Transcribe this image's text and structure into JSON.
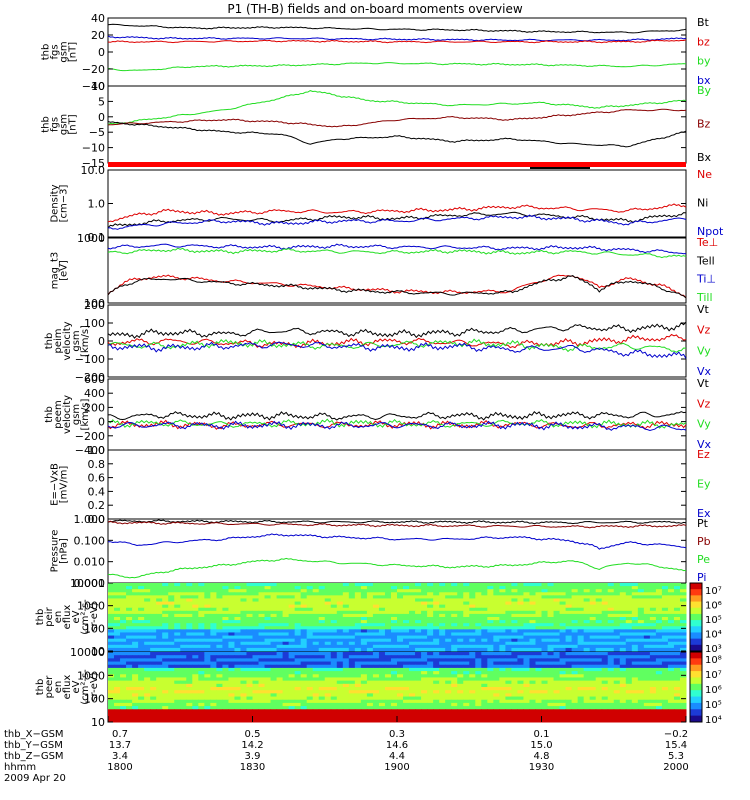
{
  "title": "P1 (TH-B) fields and on-board moments overview",
  "colors": {
    "black": "#000000",
    "red": "#dd0000",
    "green": "#22dd22",
    "blue": "#0000cc",
    "darkred": "#880000"
  },
  "chart_data": [
    {
      "type": "line",
      "panel": "fgs-magnitude",
      "ylabel_lines": [
        "thb",
        "fgs",
        "gsm",
        "[nT]"
      ],
      "ylim": [
        -40,
        40
      ],
      "yticks": [
        "40",
        "20",
        "0",
        "−20",
        "−40"
      ],
      "legend": [
        "Bt",
        "bz",
        "by",
        "bx"
      ],
      "series": [
        {
          "name": "Bt",
          "color": "black",
          "x": [
            0,
            0.05,
            0.15,
            0.3,
            0.45,
            0.6,
            0.75,
            0.9,
            1.0
          ],
          "values": [
            32,
            31,
            28,
            29,
            27,
            26,
            24,
            23,
            26
          ]
        },
        {
          "name": "bx",
          "color": "blue",
          "x": [
            0,
            0.1,
            0.3,
            0.5,
            0.7,
            0.9,
            1.0
          ],
          "values": [
            18,
            16,
            16,
            15,
            14,
            14,
            16
          ]
        },
        {
          "name": "bz",
          "color": "red",
          "x": [
            0,
            0.1,
            0.3,
            0.5,
            0.7,
            0.9,
            1.0
          ],
          "values": [
            12,
            12,
            13,
            12,
            12,
            12,
            14
          ]
        },
        {
          "name": "by",
          "color": "green",
          "x": [
            0,
            0.05,
            0.15,
            0.3,
            0.45,
            0.6,
            0.75,
            0.9,
            1.0
          ],
          "values": [
            -20,
            -22,
            -17,
            -16,
            -13,
            -14,
            -15,
            -17,
            -14
          ]
        }
      ]
    },
    {
      "type": "line",
      "panel": "fgs-components",
      "ylabel_lines": [
        "thb",
        "fgs",
        "gsm",
        "[nT]"
      ],
      "ylim": [
        -20,
        12
      ],
      "yticks": [
        "10",
        "5",
        "0",
        "−5",
        "−10",
        "−15"
      ],
      "legend": [
        "By",
        "Bz",
        "Bx"
      ],
      "series": [
        {
          "name": "By",
          "color": "green",
          "x": [
            0,
            0.1,
            0.2,
            0.3,
            0.35,
            0.45,
            0.6,
            0.75,
            0.85,
            0.95,
            1.0
          ],
          "values": [
            -4,
            -1,
            2,
            7,
            10,
            6,
            4,
            5,
            3,
            5,
            6
          ]
        },
        {
          "name": "Bz",
          "color": "darkred",
          "x": [
            0,
            0.1,
            0.2,
            0.3,
            0.4,
            0.5,
            0.6,
            0.7,
            0.8,
            0.9,
            1.0
          ],
          "values": [
            -4,
            -3,
            -2,
            -3,
            -5,
            -2,
            -1,
            -2,
            0,
            2,
            2
          ]
        },
        {
          "name": "Bx",
          "color": "black",
          "x": [
            0,
            0.1,
            0.2,
            0.3,
            0.35,
            0.4,
            0.5,
            0.6,
            0.7,
            0.8,
            0.9,
            1.0
          ],
          "values": [
            -3,
            -5,
            -7,
            -8,
            -12,
            -10,
            -9,
            -11,
            -10,
            -12,
            -13,
            -7
          ]
        }
      ]
    },
    {
      "type": "line",
      "panel": "density",
      "ylabel_lines": [
        "Density",
        "[cm−3]"
      ],
      "scale": "log",
      "ylim": [
        0.1,
        10
      ],
      "yticks": [
        "10.0",
        "1.0",
        "0.1"
      ],
      "legend": [
        "Ne",
        "Ni",
        "Npot"
      ],
      "series": [
        {
          "name": "Ne",
          "color": "red",
          "x": [
            0,
            0.1,
            0.2,
            0.3,
            0.4,
            0.5,
            0.6,
            0.7,
            0.8,
            0.9,
            1.0
          ],
          "values": [
            0.3,
            0.6,
            0.5,
            0.6,
            0.55,
            0.6,
            0.65,
            0.8,
            0.7,
            0.6,
            0.9
          ]
        },
        {
          "name": "Ni",
          "color": "black",
          "x": [
            0,
            0.1,
            0.2,
            0.3,
            0.4,
            0.5,
            0.6,
            0.7,
            0.8,
            0.9,
            1.0
          ],
          "values": [
            0.2,
            0.3,
            0.35,
            0.3,
            0.4,
            0.35,
            0.45,
            0.5,
            0.4,
            0.3,
            0.5
          ]
        },
        {
          "name": "Npot",
          "color": "blue",
          "x": [
            0,
            0.1,
            0.2,
            0.3,
            0.4,
            0.5,
            0.6,
            0.7,
            0.8,
            0.9,
            1.0
          ],
          "values": [
            0.18,
            0.25,
            0.3,
            0.25,
            0.3,
            0.3,
            0.35,
            0.4,
            0.35,
            0.25,
            0.35
          ]
        }
      ]
    },
    {
      "type": "line",
      "panel": "temperature",
      "ylabel_lines": [
        "mag_t3",
        "[eV]"
      ],
      "scale": "log",
      "ylim": [
        50,
        6000
      ],
      "yticks": [
        "1000",
        "100"
      ],
      "legend": [
        "Te⊥",
        "Tell",
        "Ti⊥",
        "Till"
      ],
      "series": [
        {
          "name": "Ti⊥",
          "color": "blue",
          "x": [
            0,
            0.1,
            0.2,
            0.3,
            0.4,
            0.5,
            0.6,
            0.7,
            0.8,
            0.9,
            1.0
          ],
          "values": [
            3000,
            3500,
            3200,
            3000,
            3300,
            3100,
            3000,
            2800,
            3000,
            2500,
            2000
          ]
        },
        {
          "name": "Till",
          "color": "green",
          "x": [
            0,
            0.1,
            0.2,
            0.3,
            0.4,
            0.5,
            0.6,
            0.7,
            0.8,
            0.9,
            1.0
          ],
          "values": [
            2000,
            2500,
            2200,
            2400,
            2200,
            2100,
            2300,
            2000,
            2200,
            1800,
            1500
          ]
        },
        {
          "name": "Te⊥",
          "color": "red",
          "x": [
            0,
            0.05,
            0.1,
            0.2,
            0.3,
            0.4,
            0.5,
            0.6,
            0.7,
            0.8,
            0.85,
            0.9,
            1.0
          ],
          "values": [
            100,
            300,
            350,
            250,
            200,
            150,
            120,
            110,
            120,
            400,
            150,
            300,
            80
          ]
        },
        {
          "name": "Tell",
          "color": "black",
          "x": [
            0,
            0.05,
            0.1,
            0.2,
            0.3,
            0.4,
            0.5,
            0.6,
            0.7,
            0.8,
            0.85,
            0.9,
            1.0
          ],
          "values": [
            90,
            260,
            300,
            220,
            180,
            130,
            110,
            100,
            110,
            350,
            130,
            260,
            70
          ]
        }
      ]
    },
    {
      "type": "line",
      "panel": "peim-velocity",
      "ylabel_lines": [
        "thb",
        "peim",
        "velocity",
        "gsm",
        "[km/s]"
      ],
      "ylim": [
        -200,
        220
      ],
      "yticks": [
        "200",
        "100",
        "0",
        "−100",
        "−200"
      ],
      "legend": [
        "Vt",
        "Vz",
        "Vy",
        "Vx"
      ],
      "series": [
        {
          "name": "Vt",
          "color": "black",
          "x": [
            0,
            0.1,
            0.2,
            0.3,
            0.4,
            0.5,
            0.6,
            0.7,
            0.8,
            0.9,
            1.0
          ],
          "values": [
            40,
            60,
            50,
            70,
            60,
            50,
            60,
            70,
            90,
            80,
            100
          ]
        },
        {
          "name": "Vz",
          "color": "red",
          "x": [
            0,
            0.1,
            0.2,
            0.3,
            0.4,
            0.5,
            0.6,
            0.7,
            0.8,
            0.9,
            1.0
          ],
          "values": [
            0,
            10,
            0,
            -10,
            0,
            10,
            0,
            -10,
            0,
            20,
            30
          ]
        },
        {
          "name": "Vy",
          "color": "green",
          "x": [
            0,
            0.1,
            0.2,
            0.3,
            0.4,
            0.5,
            0.6,
            0.7,
            0.8,
            0.9,
            1.0
          ],
          "values": [
            -10,
            -20,
            0,
            -10,
            -20,
            -10,
            0,
            -10,
            -30,
            -20,
            -40
          ]
        },
        {
          "name": "Vx",
          "color": "blue",
          "x": [
            0,
            0.1,
            0.2,
            0.3,
            0.4,
            0.5,
            0.6,
            0.7,
            0.8,
            0.9,
            1.0
          ],
          "values": [
            -20,
            -30,
            -20,
            -10,
            -20,
            -30,
            -20,
            -40,
            -30,
            -60,
            -80
          ]
        }
      ]
    },
    {
      "type": "line",
      "panel": "peem-velocity",
      "ylabel_lines": [
        "thb",
        "peem",
        "velocity",
        "gsm",
        "[km/s]"
      ],
      "ylim": [
        -400,
        650
      ],
      "yticks": [
        "600",
        "400",
        "200",
        "0",
        "−200",
        "−400"
      ],
      "legend": [
        "Vt",
        "Vz",
        "Vy",
        "Vx"
      ],
      "series": [
        {
          "name": "Vt",
          "color": "black",
          "x": [
            0,
            0.1,
            0.2,
            0.3,
            0.4,
            0.5,
            0.6,
            0.7,
            0.8,
            0.9,
            1.0
          ],
          "values": [
            80,
            120,
            100,
            110,
            90,
            100,
            110,
            100,
            120,
            110,
            130
          ]
        },
        {
          "name": "Vz",
          "color": "red",
          "x": [
            0,
            0.1,
            0.2,
            0.3,
            0.4,
            0.5,
            0.6,
            0.7,
            0.8,
            0.9,
            1.0
          ],
          "values": [
            -30,
            -20,
            -40,
            -20,
            -30,
            -20,
            -30,
            -20,
            -40,
            -30,
            -20
          ]
        },
        {
          "name": "Vy",
          "color": "green",
          "x": [
            0,
            0.1,
            0.2,
            0.3,
            0.4,
            0.5,
            0.6,
            0.7,
            0.8,
            0.9,
            1.0
          ],
          "values": [
            -10,
            0,
            -20,
            -10,
            0,
            -10,
            -20,
            0,
            -10,
            -20,
            -30
          ]
        },
        {
          "name": "Vx",
          "color": "blue",
          "x": [
            0,
            0.1,
            0.2,
            0.3,
            0.4,
            0.5,
            0.6,
            0.7,
            0.8,
            0.9,
            1.0
          ],
          "values": [
            -40,
            -30,
            -40,
            -30,
            -40,
            -30,
            -40,
            -30,
            -50,
            -60,
            -80
          ]
        }
      ]
    },
    {
      "type": "line",
      "panel": "electric-field",
      "ylabel_lines": [
        "E=−VxB",
        "[mV/m]"
      ],
      "ylim": [
        0,
        1
      ],
      "yticks": [
        "1.0",
        "0.8",
        "0.6",
        "0.4",
        "0.2",
        "0.0"
      ],
      "legend": [
        "Ez",
        "Ey",
        "Ex"
      ],
      "series": []
    },
    {
      "type": "line",
      "panel": "pressure",
      "ylabel_lines": [
        "Pressure",
        "[nPa]"
      ],
      "scale": "log",
      "ylim": [
        0.0008,
        1.2
      ],
      "yticks": [
        "1.000",
        "0.100",
        "0.010",
        "0.001"
      ],
      "legend": [
        "Pt",
        "Pb",
        "Pe",
        "Pi"
      ],
      "series": [
        {
          "name": "Pt",
          "color": "black",
          "x": [
            0,
            0.2,
            0.4,
            0.6,
            0.8,
            1.0
          ],
          "values": [
            0.95,
            0.9,
            0.85,
            0.85,
            0.8,
            0.85
          ]
        },
        {
          "name": "Pb",
          "color": "darkred",
          "x": [
            0,
            0.2,
            0.4,
            0.6,
            0.8,
            1.0
          ],
          "values": [
            0.8,
            0.7,
            0.6,
            0.55,
            0.5,
            0.55
          ]
        },
        {
          "name": "Pi",
          "color": "blue",
          "x": [
            0,
            0.05,
            0.1,
            0.2,
            0.3,
            0.4,
            0.5,
            0.6,
            0.7,
            0.8,
            0.85,
            0.9,
            1.0
          ],
          "values": [
            0.1,
            0.06,
            0.08,
            0.12,
            0.2,
            0.15,
            0.12,
            0.12,
            0.15,
            0.1,
            0.04,
            0.08,
            0.05
          ]
        },
        {
          "name": "Pe",
          "color": "green",
          "x": [
            0,
            0.05,
            0.1,
            0.2,
            0.3,
            0.4,
            0.5,
            0.6,
            0.7,
            0.8,
            0.85,
            0.9,
            1.0
          ],
          "values": [
            0.002,
            0.0015,
            0.003,
            0.006,
            0.012,
            0.008,
            0.006,
            0.005,
            0.006,
            0.01,
            0.004,
            0.008,
            0.003
          ]
        }
      ]
    },
    {
      "type": "heatmap",
      "panel": "ion-spectrogram",
      "ylabel_lines": [
        "thb",
        "peir",
        "en",
        "eflux",
        "eV",
        "(cm²-s-",
        "sr-eV)"
      ],
      "scale": "log",
      "ylim": [
        10,
        20000
      ],
      "yticks": [
        "10000",
        "1000",
        "100",
        "10"
      ],
      "colorbar_ticks": [
        "10⁷",
        "10⁶",
        "10⁵",
        "10⁴",
        "10³"
      ]
    },
    {
      "type": "heatmap",
      "panel": "electron-spectrogram",
      "ylabel_lines": [
        "thb",
        "peer",
        "en",
        "eflux",
        "eV",
        "(cm²-s-",
        "sr-eV)"
      ],
      "scale": "log",
      "ylim": [
        10,
        20000
      ],
      "yticks": [
        "10000",
        "1000",
        "100",
        "10"
      ],
      "colorbar_ticks": [
        "10⁸",
        "10⁷",
        "10⁶",
        "10⁵",
        "10⁴"
      ]
    }
  ],
  "ephemeris": {
    "row_labels": [
      "thb_X−GSM",
      "thb_Y−GSM",
      "thb_Z−GSM",
      "hhmm",
      "2009 Apr 20"
    ],
    "columns": [
      [
        "0.7",
        "13.7",
        "3.4",
        "1800"
      ],
      [
        "0.5",
        "14.2",
        "3.9",
        "1830"
      ],
      [
        "0.3",
        "14.6",
        "4.4",
        "1900"
      ],
      [
        "0.1",
        "15.0",
        "4.8",
        "1930"
      ],
      [
        "−0.2",
        "15.4",
        "5.3",
        "2000"
      ]
    ]
  }
}
